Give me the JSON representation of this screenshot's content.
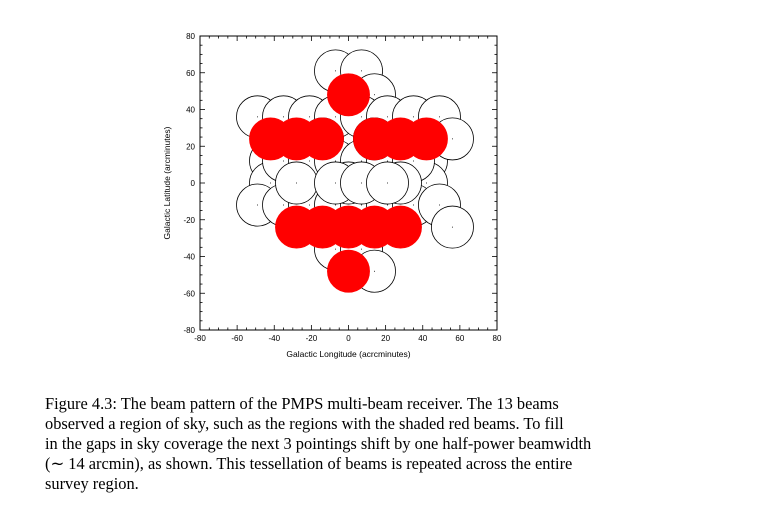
{
  "chart_data": {
    "type": "scatter",
    "title": "",
    "xlabel": "Galactic Longitude (acrcminutes)",
    "ylabel": "Galactic Latitude (arcminutes)",
    "xlim": [
      -80,
      80
    ],
    "ylim": [
      -80,
      80
    ],
    "xticks": [
      -80,
      -60,
      -40,
      -20,
      0,
      20,
      40,
      60,
      80
    ],
    "yticks": [
      -80,
      -60,
      -40,
      -20,
      0,
      20,
      40,
      60,
      80
    ],
    "beam_radius": 7,
    "colors": {
      "filled": "#ff0000",
      "outline": "#000000"
    },
    "series": [
      {
        "name": "",
        "fill": "red",
        "x": [
          0,
          -28,
          28,
          -14,
          14,
          -42,
          42,
          -28,
          28,
          -14,
          14,
          0,
          0
        ],
        "y": [
          48,
          24,
          24,
          24,
          24,
          24,
          24,
          -24,
          -24,
          -24,
          -24,
          -24,
          -48
        ]
      },
      {
        "name": "",
        "fill": "none",
        "x": [
          -7,
          7,
          14,
          -49,
          -35,
          -21,
          -7,
          7,
          21,
          35,
          49,
          -14,
          14,
          -42,
          42,
          -28,
          28,
          -14,
          14,
          -42,
          42,
          -35,
          -21,
          -7,
          7,
          21,
          35,
          -49,
          -35,
          -21,
          -7,
          7,
          21,
          35,
          49,
          -7,
          7,
          14,
          0,
          -28,
          28,
          56,
          56,
          -7,
          7,
          21,
          14
        ],
        "y": [
          61,
          61,
          48,
          36,
          36,
          36,
          36,
          36,
          36,
          36,
          36,
          24,
          24,
          12,
          12,
          12,
          12,
          0,
          0,
          0,
          0,
          12,
          12,
          12,
          12,
          12,
          12,
          -12,
          -12,
          -12,
          -12,
          -12,
          -12,
          -12,
          -12,
          -36,
          -36,
          -48,
          0,
          0,
          0,
          24,
          -24,
          0,
          0,
          0,
          24
        ],
        "markers_only": true
      }
    ]
  },
  "caption": {
    "lines": [
      "Figure 4.3: The beam pattern of the PMPS multi-beam receiver. The 13 beams",
      "observed a region of sky, such as the regions with the shaded red beams. To fill",
      "in the gaps in sky coverage the next 3 pointings shift by one half-power beamwidth",
      "(∼ 14 arcmin), as shown. This tessellation of beams is repeated across the entire",
      "survey region."
    ]
  }
}
